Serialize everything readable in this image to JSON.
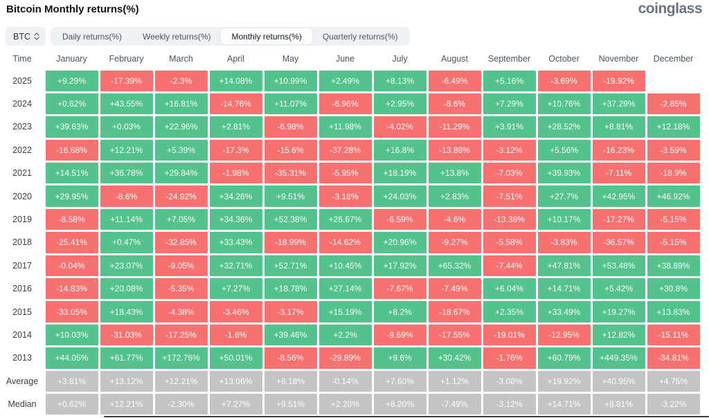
{
  "page": {
    "title": "Bitcoin Monthly returns(%)",
    "brand": "coinglass"
  },
  "controls": {
    "coin_selector": {
      "value": "BTC"
    },
    "tabs": [
      {
        "label": "Daily returns(%)",
        "active": false
      },
      {
        "label": "Weekly returns(%)",
        "active": false
      },
      {
        "label": "Monthly returns(%)",
        "active": true
      },
      {
        "label": "Quarterly returns(%)",
        "active": false
      }
    ]
  },
  "colors": {
    "positive": "#53c28c",
    "negative": "#f87171",
    "neutral": "#c4c4c4"
  },
  "table": {
    "columns": [
      "Time",
      "January",
      "February",
      "March",
      "April",
      "May",
      "June",
      "July",
      "August",
      "September",
      "October",
      "November",
      "December"
    ],
    "rows": [
      {
        "label": "2025",
        "cells": [
          [
            "+9.29%",
            "g"
          ],
          [
            "-17.39%",
            "r"
          ],
          [
            "-2.3%",
            "r"
          ],
          [
            "+14.08%",
            "g"
          ],
          [
            "+10.99%",
            "g"
          ],
          [
            "+2.49%",
            "g"
          ],
          [
            "+8.13%",
            "g"
          ],
          [
            "-6.49%",
            "r"
          ],
          [
            "+5.16%",
            "g"
          ],
          [
            "-3.69%",
            "r"
          ],
          [
            "-19.92%",
            "r"
          ],
          [
            "",
            "e"
          ]
        ]
      },
      {
        "label": "2024",
        "cells": [
          [
            "+0.62%",
            "g"
          ],
          [
            "+43.55%",
            "g"
          ],
          [
            "+16.81%",
            "g"
          ],
          [
            "-14.76%",
            "r"
          ],
          [
            "+11.07%",
            "g"
          ],
          [
            "-6.96%",
            "r"
          ],
          [
            "+2.95%",
            "g"
          ],
          [
            "-8.6%",
            "r"
          ],
          [
            "+7.29%",
            "g"
          ],
          [
            "+10.76%",
            "g"
          ],
          [
            "+37.29%",
            "g"
          ],
          [
            "-2.85%",
            "r"
          ]
        ]
      },
      {
        "label": "2023",
        "cells": [
          [
            "+39.63%",
            "g"
          ],
          [
            "+0.03%",
            "g"
          ],
          [
            "+22.96%",
            "g"
          ],
          [
            "+2.81%",
            "g"
          ],
          [
            "-6.98%",
            "r"
          ],
          [
            "+11.98%",
            "g"
          ],
          [
            "-4.02%",
            "r"
          ],
          [
            "-11.29%",
            "r"
          ],
          [
            "+3.91%",
            "g"
          ],
          [
            "+28.52%",
            "g"
          ],
          [
            "+8.81%",
            "g"
          ],
          [
            "+12.18%",
            "g"
          ]
        ]
      },
      {
        "label": "2022",
        "cells": [
          [
            "-16.68%",
            "r"
          ],
          [
            "+12.21%",
            "g"
          ],
          [
            "+5.39%",
            "g"
          ],
          [
            "-17.3%",
            "r"
          ],
          [
            "-15.6%",
            "r"
          ],
          [
            "-37.28%",
            "r"
          ],
          [
            "+16.8%",
            "g"
          ],
          [
            "-13.88%",
            "r"
          ],
          [
            "-3.12%",
            "r"
          ],
          [
            "+5.56%",
            "g"
          ],
          [
            "-16.23%",
            "r"
          ],
          [
            "-3.59%",
            "r"
          ]
        ]
      },
      {
        "label": "2021",
        "cells": [
          [
            "+14.51%",
            "g"
          ],
          [
            "+36.78%",
            "g"
          ],
          [
            "+29.84%",
            "g"
          ],
          [
            "-1.98%",
            "r"
          ],
          [
            "-35.31%",
            "r"
          ],
          [
            "-5.95%",
            "r"
          ],
          [
            "+18.19%",
            "g"
          ],
          [
            "+13.8%",
            "g"
          ],
          [
            "-7.03%",
            "r"
          ],
          [
            "+39.93%",
            "g"
          ],
          [
            "-7.11%",
            "r"
          ],
          [
            "-18.9%",
            "r"
          ]
        ]
      },
      {
        "label": "2020",
        "cells": [
          [
            "+29.95%",
            "g"
          ],
          [
            "-8.6%",
            "r"
          ],
          [
            "-24.92%",
            "r"
          ],
          [
            "+34.26%",
            "g"
          ],
          [
            "+9.51%",
            "g"
          ],
          [
            "-3.18%",
            "r"
          ],
          [
            "+24.03%",
            "g"
          ],
          [
            "+2.83%",
            "g"
          ],
          [
            "-7.51%",
            "r"
          ],
          [
            "+27.7%",
            "g"
          ],
          [
            "+42.95%",
            "g"
          ],
          [
            "+46.92%",
            "g"
          ]
        ]
      },
      {
        "label": "2019",
        "cells": [
          [
            "-8.58%",
            "r"
          ],
          [
            "+11.14%",
            "g"
          ],
          [
            "+7.05%",
            "g"
          ],
          [
            "+34.36%",
            "g"
          ],
          [
            "+52.38%",
            "g"
          ],
          [
            "+26.67%",
            "g"
          ],
          [
            "-6.59%",
            "r"
          ],
          [
            "-4.6%",
            "r"
          ],
          [
            "-13.38%",
            "r"
          ],
          [
            "+10.17%",
            "g"
          ],
          [
            "-17.27%",
            "r"
          ],
          [
            "-5.15%",
            "r"
          ]
        ]
      },
      {
        "label": "2018",
        "cells": [
          [
            "-25.41%",
            "r"
          ],
          [
            "+0.47%",
            "g"
          ],
          [
            "-32.85%",
            "r"
          ],
          [
            "+33.43%",
            "g"
          ],
          [
            "-18.99%",
            "r"
          ],
          [
            "-14.62%",
            "r"
          ],
          [
            "+20.96%",
            "g"
          ],
          [
            "-9.27%",
            "r"
          ],
          [
            "-5.58%",
            "r"
          ],
          [
            "-3.83%",
            "r"
          ],
          [
            "-36.57%",
            "r"
          ],
          [
            "-5.15%",
            "r"
          ]
        ]
      },
      {
        "label": "2017",
        "cells": [
          [
            "-0.04%",
            "r"
          ],
          [
            "+23.07%",
            "g"
          ],
          [
            "-9.05%",
            "r"
          ],
          [
            "+32.71%",
            "g"
          ],
          [
            "+52.71%",
            "g"
          ],
          [
            "+10.45%",
            "g"
          ],
          [
            "+17.92%",
            "g"
          ],
          [
            "+65.32%",
            "g"
          ],
          [
            "-7.44%",
            "r"
          ],
          [
            "+47.81%",
            "g"
          ],
          [
            "+53.48%",
            "g"
          ],
          [
            "+38.89%",
            "g"
          ]
        ]
      },
      {
        "label": "2016",
        "cells": [
          [
            "-14.83%",
            "r"
          ],
          [
            "+20.08%",
            "g"
          ],
          [
            "-5.35%",
            "r"
          ],
          [
            "+7.27%",
            "g"
          ],
          [
            "+18.78%",
            "g"
          ],
          [
            "+27.14%",
            "g"
          ],
          [
            "-7.67%",
            "r"
          ],
          [
            "-7.49%",
            "r"
          ],
          [
            "+6.04%",
            "g"
          ],
          [
            "+14.71%",
            "g"
          ],
          [
            "+5.42%",
            "g"
          ],
          [
            "+30.8%",
            "g"
          ]
        ]
      },
      {
        "label": "2015",
        "cells": [
          [
            "-33.05%",
            "r"
          ],
          [
            "+18.43%",
            "g"
          ],
          [
            "-4.38%",
            "r"
          ],
          [
            "-3.46%",
            "r"
          ],
          [
            "-3.17%",
            "r"
          ],
          [
            "+15.19%",
            "g"
          ],
          [
            "+8.2%",
            "g"
          ],
          [
            "-18.67%",
            "r"
          ],
          [
            "+2.35%",
            "g"
          ],
          [
            "+33.49%",
            "g"
          ],
          [
            "+19.27%",
            "g"
          ],
          [
            "+13.83%",
            "g"
          ]
        ]
      },
      {
        "label": "2014",
        "cells": [
          [
            "+10.03%",
            "g"
          ],
          [
            "-31.03%",
            "r"
          ],
          [
            "-17.25%",
            "r"
          ],
          [
            "-1.6%",
            "r"
          ],
          [
            "+39.46%",
            "g"
          ],
          [
            "+2.2%",
            "g"
          ],
          [
            "-9.69%",
            "r"
          ],
          [
            "-17.55%",
            "r"
          ],
          [
            "-19.01%",
            "r"
          ],
          [
            "-12.95%",
            "r"
          ],
          [
            "+12.82%",
            "g"
          ],
          [
            "-15.11%",
            "r"
          ]
        ]
      },
      {
        "label": "2013",
        "cells": [
          [
            "+44.05%",
            "g"
          ],
          [
            "+61.77%",
            "g"
          ],
          [
            "+172.76%",
            "g"
          ],
          [
            "+50.01%",
            "g"
          ],
          [
            "-8.56%",
            "r"
          ],
          [
            "-29.89%",
            "r"
          ],
          [
            "+9.6%",
            "g"
          ],
          [
            "+30.42%",
            "g"
          ],
          [
            "-1.76%",
            "r"
          ],
          [
            "+60.79%",
            "g"
          ],
          [
            "+449.35%",
            "g"
          ],
          [
            "-34.81%",
            "r"
          ]
        ]
      },
      {
        "label": "Average",
        "cells": [
          [
            "+3.81%",
            "n"
          ],
          [
            "+13.12%",
            "n"
          ],
          [
            "+12.21%",
            "n"
          ],
          [
            "+13.06%",
            "n"
          ],
          [
            "+8.18%",
            "n"
          ],
          [
            "-0.14%",
            "n"
          ],
          [
            "+7.60%",
            "n"
          ],
          [
            "+1.12%",
            "n"
          ],
          [
            "-3.08%",
            "n"
          ],
          [
            "+19.92%",
            "n"
          ],
          [
            "+40.95%",
            "n"
          ],
          [
            "+4.75%",
            "n"
          ]
        ]
      },
      {
        "label": "Median",
        "cells": [
          [
            "+0.62%",
            "n"
          ],
          [
            "+12.21%",
            "n"
          ],
          [
            "-2.30%",
            "n"
          ],
          [
            "+7.27%",
            "n"
          ],
          [
            "+9.51%",
            "n"
          ],
          [
            "+2.20%",
            "n"
          ],
          [
            "+8.20%",
            "n"
          ],
          [
            "-7.49%",
            "n"
          ],
          [
            "-3.12%",
            "n"
          ],
          [
            "+14.71%",
            "n"
          ],
          [
            "+8.81%",
            "n"
          ],
          [
            "-3.22%",
            "n"
          ]
        ]
      }
    ]
  }
}
